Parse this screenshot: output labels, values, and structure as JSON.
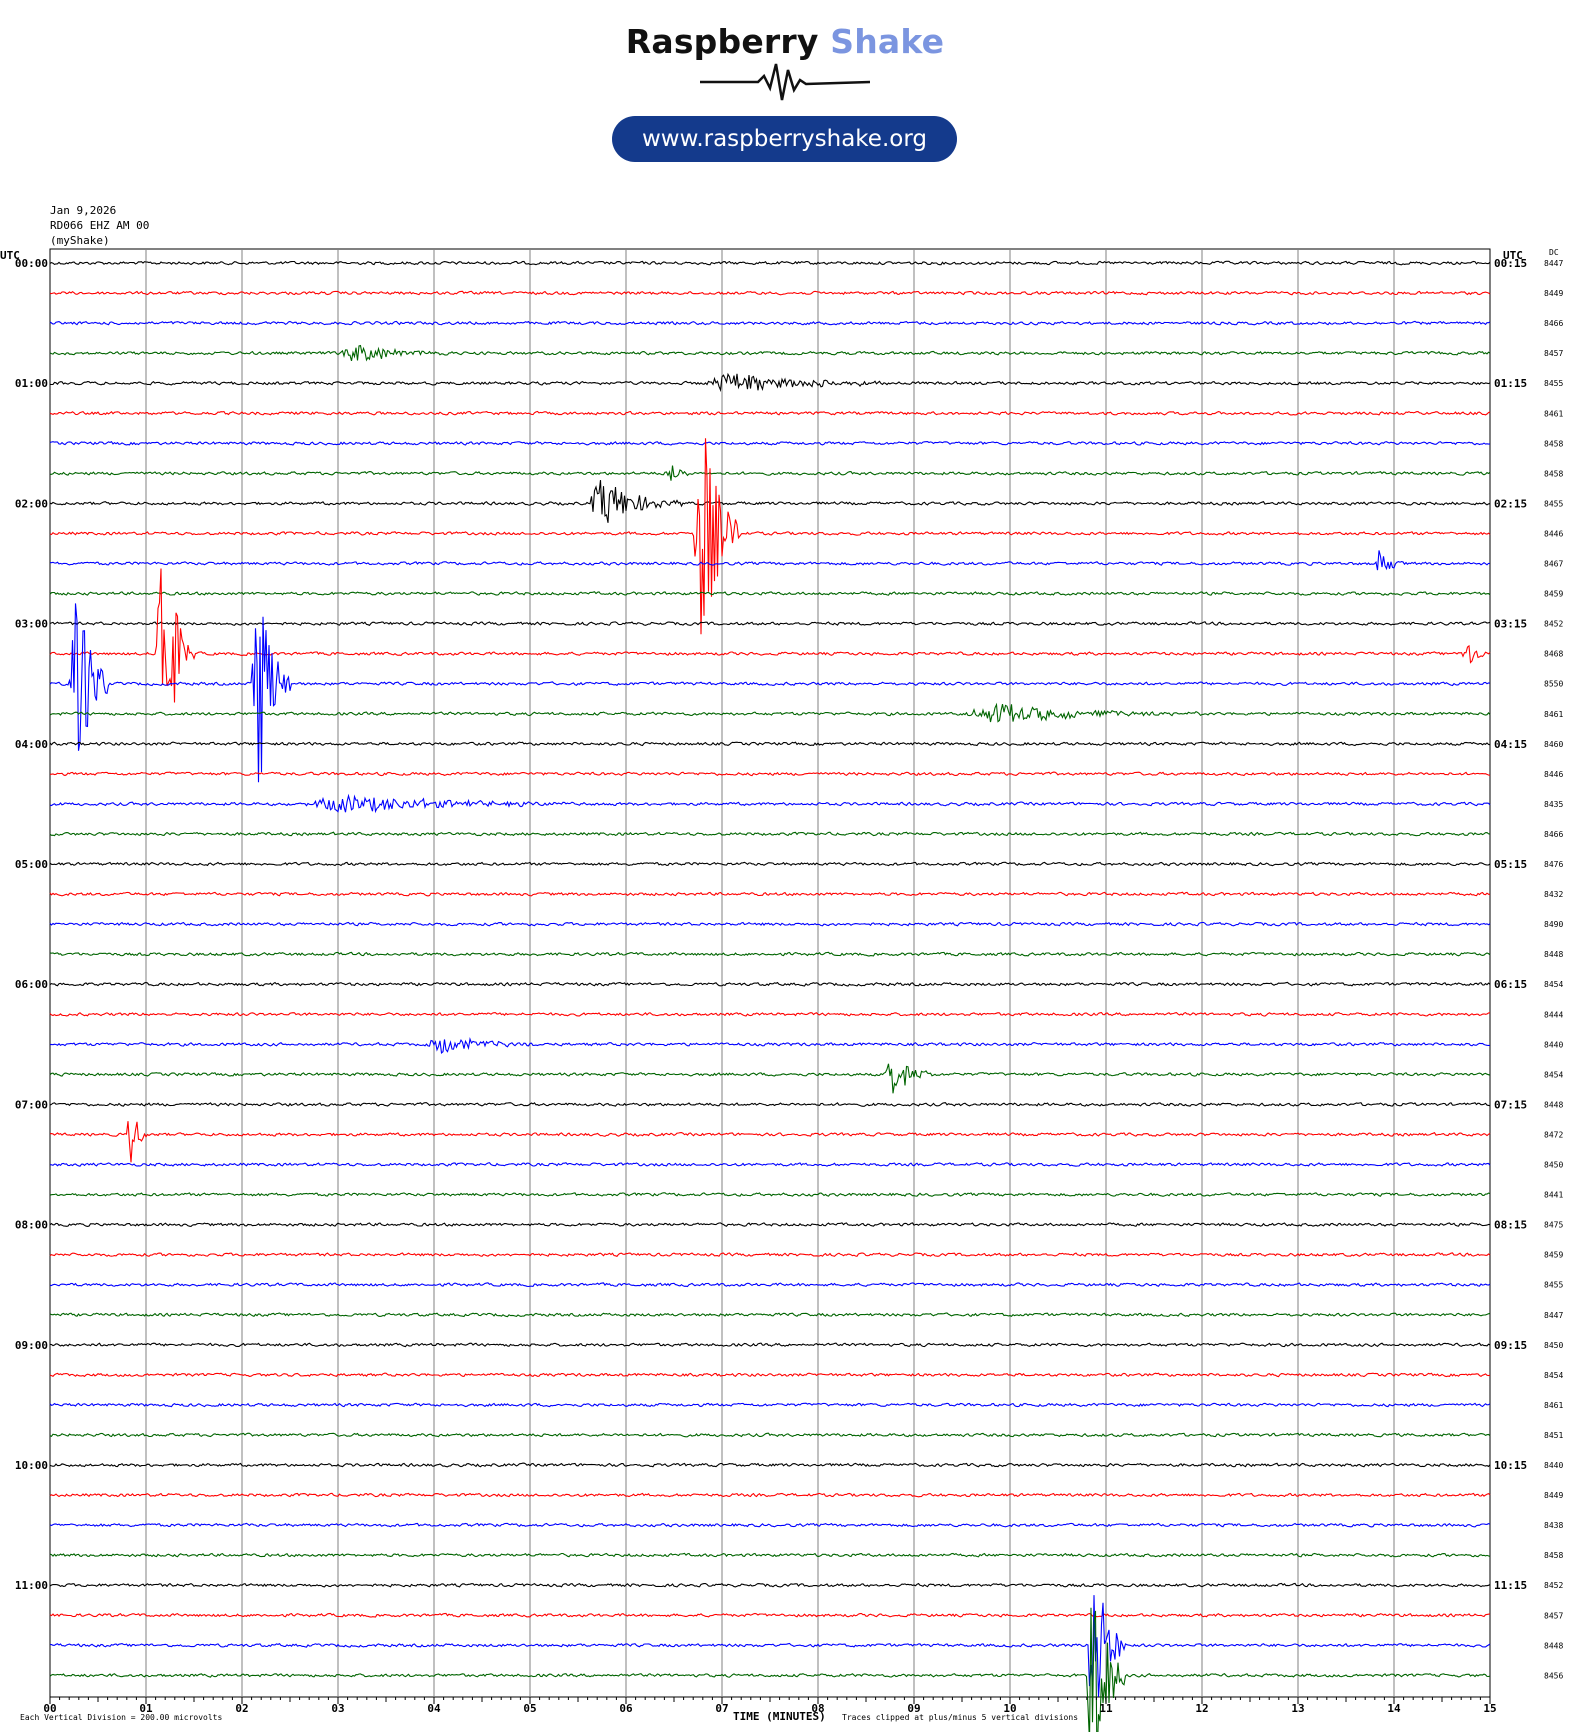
{
  "logo": {
    "word1": "Raspberry",
    "word2": "Shake",
    "url": "www.raspberryshake.org"
  },
  "header": {
    "date": "Jan 9,2026",
    "station": "RD066 EHZ AM 00",
    "network": "(myShake)"
  },
  "labels": {
    "utc_left": "UTC",
    "utc_right": "UTC",
    "dc": "DC"
  },
  "footer": {
    "division": "Each Vertical Division =  200.00 microvolts",
    "xlabel": "TIME (MINUTES)",
    "clip_note": "Traces clipped at plus/minus 5 vertical divisions"
  },
  "colors": {
    "trace_cycle": [
      "#000000",
      "#ff0000",
      "#0000ff",
      "#006400"
    ],
    "grid": "#808080",
    "pill": "#143a8c",
    "logo_accent": "#7b95e0"
  },
  "chart_data": {
    "type": "helicorder",
    "x_ticks": [
      "00",
      "01",
      "02",
      "03",
      "04",
      "05",
      "06",
      "07",
      "08",
      "09",
      "10",
      "11",
      "12",
      "13",
      "14",
      "15"
    ],
    "xlim": [
      0,
      15
    ],
    "minutes_per_line": 15,
    "hour_labels_left": [
      "00:00",
      "01:00",
      "02:00",
      "03:00",
      "04:00",
      "05:00",
      "06:00",
      "07:00",
      "08:00",
      "09:00",
      "10:00",
      "11:00"
    ],
    "hour_labels_right": [
      "00:15",
      "01:15",
      "02:15",
      "03:15",
      "04:15",
      "05:15",
      "06:15",
      "07:15",
      "08:15",
      "09:15",
      "10:15",
      "11:15"
    ],
    "dc_offsets": [
      8447,
      8449,
      8466,
      8457,
      8455,
      8461,
      8458,
      8458,
      8455,
      8446,
      8467,
      8459,
      8452,
      8468,
      8550,
      8461,
      8460,
      8446,
      8435,
      8466,
      8476,
      8432,
      8490,
      8448,
      8454,
      8444,
      8440,
      8454,
      8448,
      8472,
      8450,
      8441,
      8475,
      8459,
      8455,
      8447,
      8450,
      8454,
      8461,
      8451,
      8440,
      8449,
      8438,
      8458,
      8452,
      8457,
      8448,
      8456
    ],
    "events": [
      {
        "line": 3,
        "minute": 3.0,
        "dur": 1.2,
        "amp": 0.35
      },
      {
        "line": 4,
        "minute": 6.8,
        "dur": 2.0,
        "amp": 0.4
      },
      {
        "line": 7,
        "minute": 6.4,
        "dur": 0.4,
        "amp": 0.3
      },
      {
        "line": 8,
        "minute": 5.6,
        "dur": 1.0,
        "amp": 0.9
      },
      {
        "line": 9,
        "minute": 6.7,
        "dur": 0.5,
        "amp": 4.6
      },
      {
        "line": 10,
        "minute": 13.8,
        "dur": 0.3,
        "amp": 0.6
      },
      {
        "line": 13,
        "minute": 1.1,
        "dur": 0.4,
        "amp": 5.0
      },
      {
        "line": 13,
        "minute": 14.7,
        "dur": 0.3,
        "amp": 0.6
      },
      {
        "line": 14,
        "minute": 0.2,
        "dur": 0.4,
        "amp": 5.0
      },
      {
        "line": 14,
        "minute": 2.1,
        "dur": 0.4,
        "amp": 4.6
      },
      {
        "line": 15,
        "minute": 9.5,
        "dur": 2.5,
        "amp": 0.35
      },
      {
        "line": 18,
        "minute": 2.6,
        "dur": 3.2,
        "amp": 0.3
      },
      {
        "line": 26,
        "minute": 3.9,
        "dur": 1.2,
        "amp": 0.3
      },
      {
        "line": 27,
        "minute": 8.7,
        "dur": 0.5,
        "amp": 0.8
      },
      {
        "line": 29,
        "minute": 0.8,
        "dur": 0.2,
        "amp": 1.6
      },
      {
        "line": 46,
        "minute": 10.8,
        "dur": 0.4,
        "amp": 3.5
      },
      {
        "line": 47,
        "minute": 10.8,
        "dur": 0.4,
        "amp": 5.0
      }
    ]
  }
}
